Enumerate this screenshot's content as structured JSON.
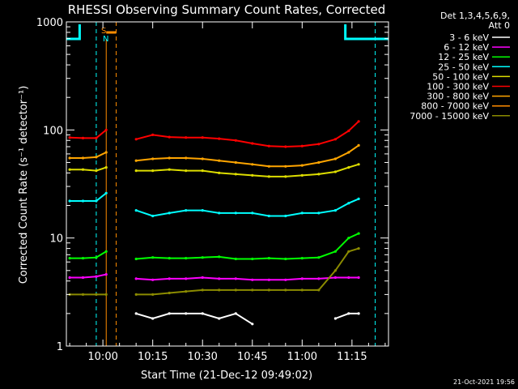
{
  "chart_data": {
    "type": "line",
    "title": "RHESSI Observing Summary Count Rates, Corrected",
    "xlabel": "Start Time (21-Dec-12 09:49:02)",
    "ylabel": "Corrected Count Rate (s⁻¹ detector⁻¹)",
    "yscale": "log",
    "ylim": [
      1,
      1000
    ],
    "xlim": [
      "09:49",
      "11:26"
    ],
    "x_ticks": [
      "10:00",
      "10:15",
      "10:30",
      "10:45",
      "11:00",
      "11:15"
    ],
    "y_ticks": [
      "1",
      "10",
      "100",
      "1000"
    ],
    "legend_header": [
      "Det 1,3,4,5,6,9,",
      "Att 0"
    ],
    "legend_position": "top-right, outside plot",
    "footer_stamp": "21-Oct-2021 19:56",
    "markers": [
      "S",
      "N"
    ],
    "x": [
      "09:50",
      "09:54",
      "09:58",
      "10:01",
      "10:03",
      "10:10",
      "10:15",
      "10:20",
      "10:25",
      "10:30",
      "10:35",
      "10:40",
      "10:45",
      "10:50",
      "10:55",
      "11:00",
      "11:05",
      "11:10",
      "11:14",
      "11:17"
    ],
    "series": [
      {
        "name": "3 - 6 keV",
        "color": "#ffffff",
        "values": [
          null,
          null,
          null,
          null,
          null,
          2.0,
          1.8,
          2.0,
          2.0,
          2.0,
          1.8,
          2.0,
          1.6,
          null,
          null,
          null,
          null,
          1.8,
          2.0,
          2.0
        ]
      },
      {
        "name": "6 - 12 keV",
        "color": "#ff00ff",
        "values": [
          4.3,
          4.3,
          4.4,
          4.6,
          null,
          4.2,
          4.1,
          4.2,
          4.2,
          4.3,
          4.2,
          4.2,
          4.1,
          4.1,
          4.1,
          4.2,
          4.2,
          4.3,
          4.3,
          4.3
        ]
      },
      {
        "name": "12 - 25 keV",
        "color": "#00ff00",
        "values": [
          6.5,
          6.5,
          6.6,
          7.5,
          null,
          6.4,
          6.6,
          6.5,
          6.5,
          6.6,
          6.7,
          6.4,
          6.4,
          6.5,
          6.4,
          6.5,
          6.6,
          7.5,
          10.0,
          11.0
        ]
      },
      {
        "name": "25 - 50 keV",
        "color": "#00ffff",
        "values": [
          22,
          22,
          22,
          26,
          null,
          18,
          16,
          17,
          18,
          18,
          17,
          17,
          17,
          16,
          16,
          17,
          17,
          18,
          21,
          23
        ]
      },
      {
        "name": "50 - 100 keV",
        "color": "#dddd00",
        "values": [
          43,
          43,
          42,
          45,
          null,
          42,
          42,
          43,
          42,
          42,
          40,
          39,
          38,
          37,
          37,
          38,
          39,
          41,
          45,
          48
        ]
      },
      {
        "name": "100 - 300 keV",
        "color": "#ff0000",
        "values": [
          85,
          84,
          84,
          100,
          null,
          82,
          90,
          86,
          85,
          85,
          83,
          80,
          75,
          71,
          70,
          71,
          74,
          82,
          98,
          120
        ]
      },
      {
        "name": "300 - 800 keV",
        "color": "#ffa500",
        "values": [
          55,
          55,
          56,
          62,
          null,
          52,
          54,
          55,
          55,
          54,
          52,
          50,
          48,
          46,
          46,
          47,
          50,
          54,
          62,
          72
        ]
      },
      {
        "name": "800 - 7000 keV",
        "color": "#ff8c00",
        "values": [
          null,
          null,
          null,
          null,
          null,
          null,
          null,
          null,
          null,
          null,
          null,
          null,
          null,
          null,
          null,
          null,
          null,
          null,
          null,
          null
        ]
      },
      {
        "name": "7000 - 15000 keV",
        "color": "#8b8b00",
        "values": [
          3.0,
          3.0,
          3.0,
          3.0,
          null,
          3.0,
          3.0,
          3.1,
          3.2,
          3.3,
          3.3,
          3.3,
          3.3,
          3.3,
          3.3,
          3.3,
          3.3,
          5.0,
          7.5,
          8.0
        ]
      }
    ]
  },
  "colors": {
    "background": "#000000",
    "axes": "#ffffff",
    "flags": "#00ffff",
    "saa": "#ff8c00"
  }
}
